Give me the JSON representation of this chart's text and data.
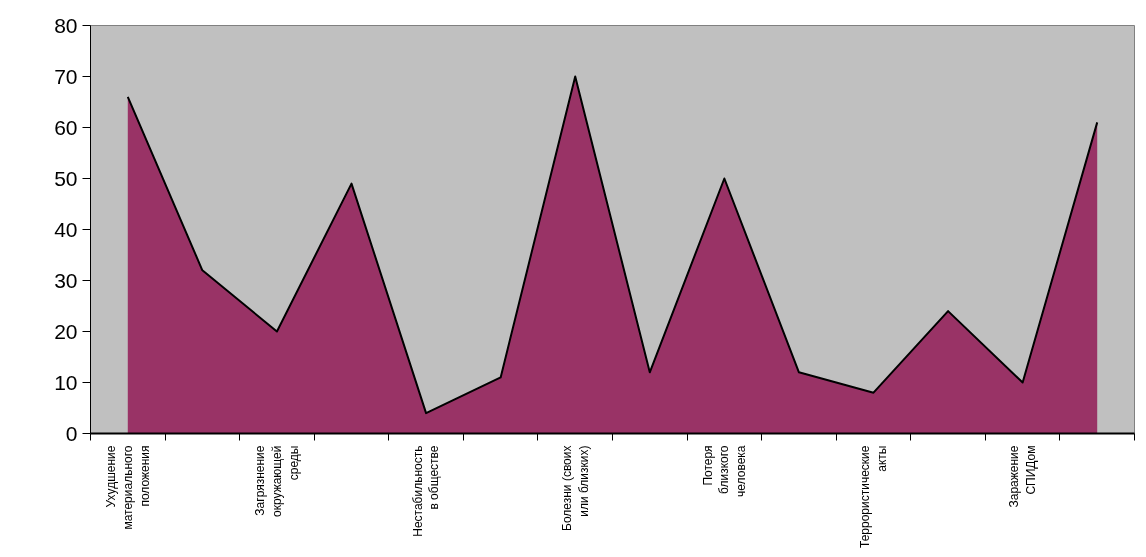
{
  "chart_data": {
    "type": "area",
    "categories": [
      "Ухудшение материального положения",
      null,
      "Загрязнение окружающей среды",
      null,
      "Нестабильность в обществе",
      null,
      "Болезни (своих или близких)",
      null,
      "Потеря близкого человека",
      null,
      "Террористические акты",
      null,
      "Заражение СПИДом",
      null
    ],
    "series": [
      {
        "color": "#993366",
        "values": [
          66,
          32,
          20,
          49,
          4,
          11,
          70,
          12,
          50,
          12,
          8,
          24,
          10,
          61
        ]
      }
    ],
    "ylim": [
      0,
      80
    ],
    "yticks": [
      0,
      10,
      20,
      30,
      40,
      50,
      60,
      70,
      80
    ]
  }
}
